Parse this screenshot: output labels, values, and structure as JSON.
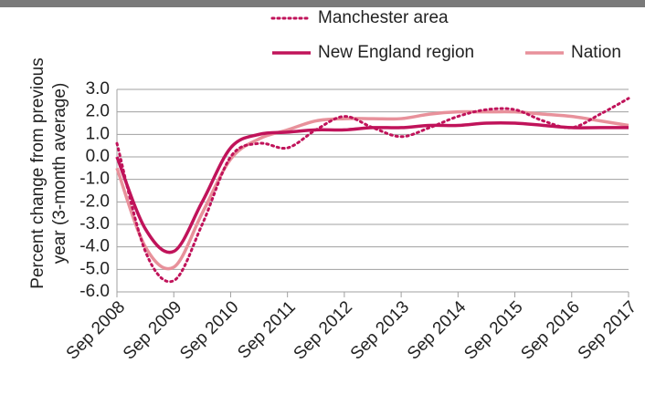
{
  "chart_data": {
    "type": "line",
    "y_label": [
      "Percent change from previous",
      "year (3-month average)"
    ],
    "categories": [
      "Sep 2008",
      null,
      "Sep 2009",
      null,
      "Sep 2010",
      null,
      "Sep 2011",
      null,
      "Sep 2012",
      null,
      "Sep 2013",
      null,
      "Sep 2014",
      null,
      "Sep 2015",
      null,
      "Sep 2016",
      null,
      "Sep 2017"
    ],
    "series": [
      {
        "name": "Manchester area",
        "color": "#c0135a",
        "style": "dotted",
        "values": [
          0.6,
          -4.2,
          -5.5,
          -3.0,
          0.0,
          0.6,
          0.4,
          1.2,
          1.8,
          1.3,
          0.9,
          1.3,
          1.8,
          2.1,
          2.1,
          1.6,
          1.3,
          1.9,
          2.6
        ]
      },
      {
        "name": "New England region",
        "color": "#c0135a",
        "style": "solid",
        "values": [
          0.0,
          -3.2,
          -4.2,
          -2.0,
          0.4,
          1.0,
          1.1,
          1.2,
          1.2,
          1.3,
          1.3,
          1.4,
          1.4,
          1.5,
          1.5,
          1.4,
          1.3,
          1.3,
          1.3
        ]
      },
      {
        "name": "Nation",
        "color": "#e8919b",
        "style": "solid",
        "values": [
          -0.5,
          -4.0,
          -4.9,
          -2.5,
          -0.1,
          0.8,
          1.2,
          1.6,
          1.7,
          1.7,
          1.7,
          1.9,
          2.0,
          2.0,
          2.0,
          1.9,
          1.8,
          1.6,
          1.4
        ]
      }
    ],
    "ylim": [
      -6,
      3
    ],
    "yticks": [
      {
        "value": -6,
        "label": "-6.0"
      },
      {
        "value": -5,
        "label": "-5.0"
      },
      {
        "value": -4,
        "label": "-4.0"
      },
      {
        "value": -3,
        "label": "-3.0"
      },
      {
        "value": -2,
        "label": "-2.0"
      },
      {
        "value": -1,
        "label": "-1.0"
      },
      {
        "value": 0,
        "label": "0.0"
      },
      {
        "value": 1,
        "label": "1.0"
      },
      {
        "value": 2,
        "label": "2.0"
      },
      {
        "value": 3,
        "label": "3.0"
      }
    ],
    "grid": true
  }
}
